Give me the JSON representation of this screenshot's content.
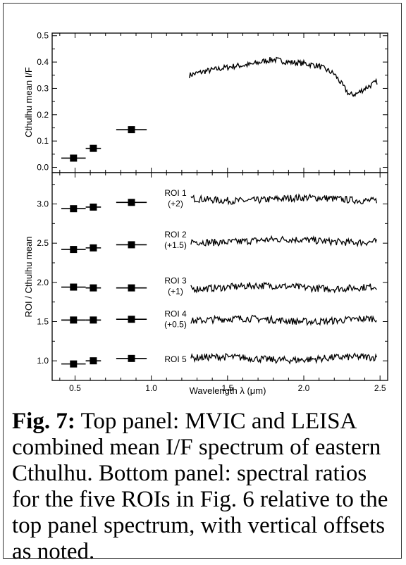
{
  "chart_data": [
    {
      "type": "line",
      "panel": "top",
      "xlim": [
        0.35,
        2.55
      ],
      "ylim": [
        -0.02,
        0.51
      ],
      "ylabel": "Cthulhu mean I/F",
      "yticks": [
        0.0,
        0.1,
        0.2,
        0.3,
        0.4,
        0.5
      ],
      "ytick_labels": [
        "0.0",
        "0.1",
        "0.2",
        "0.3",
        "0.4",
        "0.5"
      ],
      "mvic_points": [
        {
          "x": 0.49,
          "xerr": 0.08,
          "y": 0.035
        },
        {
          "x": 0.62,
          "xerr": 0.05,
          "y": 0.072
        },
        {
          "x": 0.87,
          "xerr": 0.1,
          "y": 0.143
        }
      ],
      "leisa_anchor": {
        "x": [
          1.25,
          1.35,
          1.45,
          1.55,
          1.65,
          1.75,
          1.8,
          1.9,
          2.0,
          2.1,
          2.2,
          2.25,
          2.3,
          2.35,
          2.4,
          2.48
        ],
        "y": [
          0.35,
          0.365,
          0.375,
          0.385,
          0.39,
          0.405,
          0.41,
          0.4,
          0.395,
          0.385,
          0.355,
          0.315,
          0.275,
          0.28,
          0.3,
          0.325
        ]
      }
    },
    {
      "type": "line",
      "panel": "bottom",
      "xlim": [
        0.35,
        2.55
      ],
      "ylim": [
        0.75,
        3.4
      ],
      "xlabel": "Wavelength λ (μm)",
      "ylabel": "ROI / Cthulhu mean",
      "xticks": [
        0.5,
        1.0,
        1.5,
        2.0,
        2.5
      ],
      "xtick_labels": [
        "0.5",
        "1.0",
        "1.5",
        "2.0",
        "2.5"
      ],
      "yticks": [
        1.0,
        1.5,
        2.0,
        2.5,
        3.0
      ],
      "ytick_labels": [
        "1.0",
        "1.5",
        "2.0",
        "2.5",
        "3.0"
      ],
      "series": [
        {
          "name": "ROI 1",
          "offset_label": "(+2)",
          "mvic": [
            2.94,
            2.96,
            3.02
          ],
          "leisa_level": 3.06
        },
        {
          "name": "ROI 2",
          "offset_label": "(+1.5)",
          "mvic": [
            2.42,
            2.44,
            2.48
          ],
          "leisa_level": 2.53
        },
        {
          "name": "ROI 3",
          "offset_label": "(+1)",
          "mvic": [
            1.94,
            1.93,
            1.93
          ],
          "leisa_level": 1.94
        },
        {
          "name": "ROI 4",
          "offset_label": "(+0.5)",
          "mvic": [
            1.52,
            1.52,
            1.53
          ],
          "leisa_level": 1.52
        },
        {
          "name": "ROI 5",
          "offset_label": "",
          "mvic": [
            0.96,
            1.0,
            1.03
          ],
          "leisa_level": 1.03
        }
      ],
      "mvic_x": [
        0.49,
        0.62,
        0.87
      ],
      "mvic_xerr": [
        0.08,
        0.05,
        0.1
      ]
    }
  ],
  "caption": {
    "label": "Fig. 7:",
    "text": " Top panel: MVIC and LEISA combined mean I/F spectrum of eastern Cthulhu.  Bottom panel: spectral ratios for the five ROIs in Fig. 6 relative to the top panel spectrum, with vertical offsets as noted."
  }
}
